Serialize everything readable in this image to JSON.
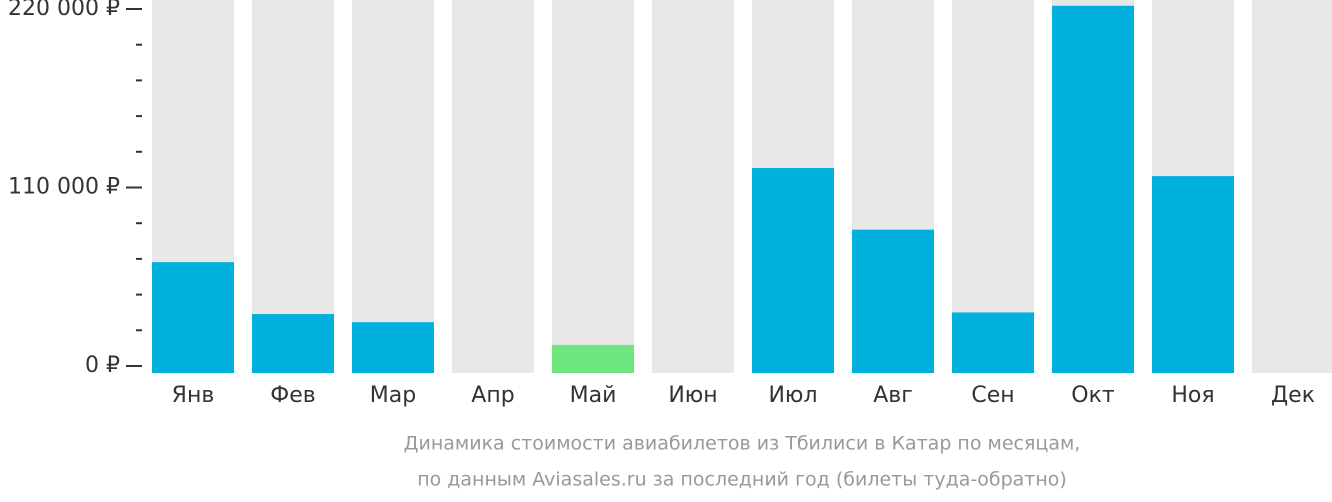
{
  "chart_data": {
    "type": "bar",
    "categories": [
      "Янв",
      "Фев",
      "Мар",
      "Апр",
      "Май",
      "Июн",
      "Июл",
      "Авг",
      "Сен",
      "Окт",
      "Ноя",
      "Дек"
    ],
    "values": [
      64000,
      32000,
      27000,
      null,
      13000,
      null,
      122000,
      84000,
      33000,
      222000,
      117000,
      null
    ],
    "colors": [
      "#00b0dd",
      "#00b0dd",
      "#00b0dd",
      "#00b0dd",
      "#6de67f",
      "#00b0dd",
      "#00b0dd",
      "#00b0dd",
      "#00b0dd",
      "#00b0dd",
      "#00b0dd",
      "#00b0dd"
    ],
    "ylim": [
      0,
      220000
    ],
    "yticks": [
      {
        "value": 0,
        "label": "0 ₽"
      },
      {
        "value": 110000,
        "label": "110 000 ₽"
      },
      {
        "value": 220000,
        "label": "220 000 ₽"
      }
    ],
    "minor_yticks": [
      22000,
      44000,
      66000,
      88000,
      132000,
      154000,
      176000,
      198000
    ],
    "caption": [
      "Динамика стоимости авиабилетов из Тбилиси в Катар по месяцам,",
      "по данным Aviasales.ru за последний год (билеты туда-обратно)"
    ]
  }
}
